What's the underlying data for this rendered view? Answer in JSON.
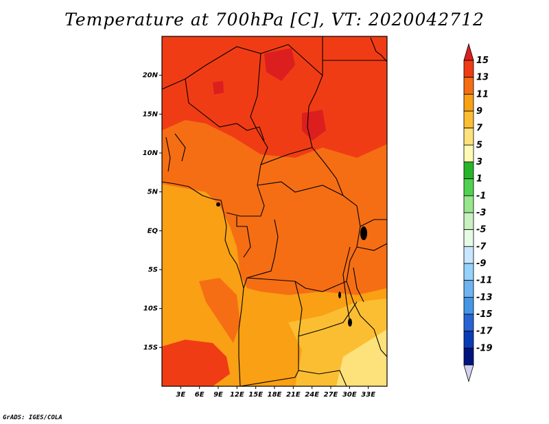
{
  "title": "Temperature at 700hPa [C], VT: 2020042712",
  "credit": "GrADS: IGES/COLA",
  "map": {
    "lon_range": [
      0,
      36
    ],
    "lat_range": [
      -20,
      25
    ],
    "lon_ticks": [
      "3E",
      "6E",
      "9E",
      "12E",
      "15E",
      "18E",
      "21E",
      "24E",
      "27E",
      "30E",
      "33E"
    ],
    "lon_tick_values": [
      3,
      6,
      9,
      12,
      15,
      18,
      21,
      24,
      27,
      30,
      33
    ],
    "lat_ticks": [
      "20N",
      "15N",
      "10N",
      "5N",
      "EQ",
      "5S",
      "10S",
      "15S"
    ],
    "lat_tick_values": [
      20,
      15,
      10,
      5,
      0,
      -5,
      -10,
      -15
    ]
  },
  "colorbar": {
    "labels": [
      "15",
      "13",
      "11",
      "9",
      "7",
      "5",
      "3",
      "1",
      "-1",
      "-3",
      "-5",
      "-7",
      "-9",
      "-11",
      "-13",
      "-15",
      "-17",
      "-19"
    ],
    "colors": [
      "#dc1e1e",
      "#f03c14",
      "#f56e14",
      "#f9a014",
      "#fbbe32",
      "#fde17a",
      "#fffab4",
      "#28b428",
      "#50d250",
      "#96e68c",
      "#c8f0c0",
      "#e6fae6",
      "#c8e6ff",
      "#96d2fa",
      "#6eb4f0",
      "#4696e6",
      "#2864d2",
      "#0a3cb4",
      "#00147d",
      "#d2d2f0"
    ],
    "top_arrow_color": "#dc1e1e",
    "bottom_arrow_color": "#d2d2f0"
  },
  "colors": {
    "deep_red": "#dc1e1e",
    "red_orange": "#f03c14",
    "orange": "#f56e14",
    "light_orange": "#f9a014",
    "yellow_orange": "#fbbe32",
    "pale_yellow": "#fde17a"
  }
}
